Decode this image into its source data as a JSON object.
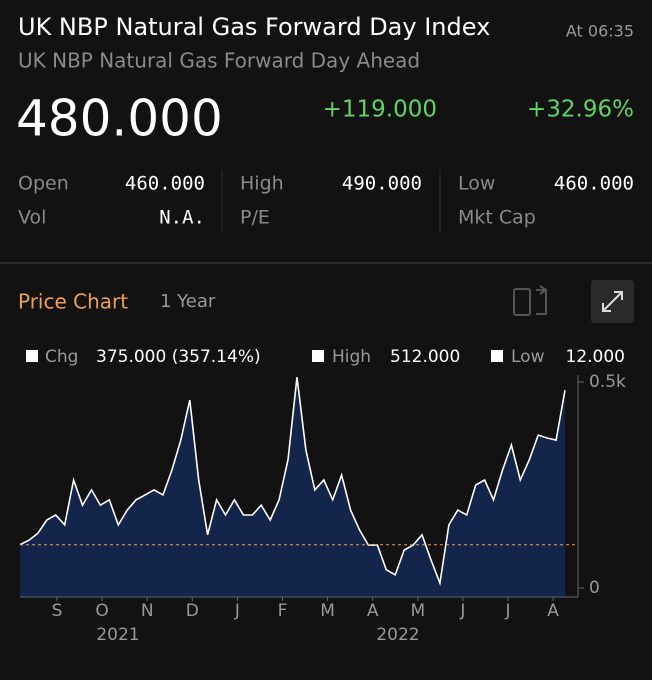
{
  "header": {
    "title": "UK NBP Natural Gas Forward Day Index",
    "time": "At 06:35",
    "subtitle": "UK NBP Natural Gas Forward Day Ahead",
    "price": "480.000",
    "change": "+119.000",
    "change_pct": "+32.96%"
  },
  "stats": [
    {
      "label": "Open",
      "value": "460.000"
    },
    {
      "label": "High",
      "value": "490.000"
    },
    {
      "label": "Low",
      "value": "460.000"
    },
    {
      "label": "Vol",
      "value": "N.A."
    },
    {
      "label": "P/E"
    },
    {
      "label": "Mkt Cap"
    }
  ],
  "chart_data": {
    "type": "area",
    "title": "Price Chart",
    "period": "1 Year",
    "legend": [
      {
        "label": "Chg",
        "value": "375.000 (357.14%)"
      },
      {
        "label": "High",
        "value": "512.000"
      },
      {
        "label": "Low",
        "value": "12.000"
      }
    ],
    "months": [
      "S",
      "O",
      "N",
      "D",
      "J",
      "F",
      "M",
      "A",
      "M",
      "J",
      "J",
      "A"
    ],
    "years": [
      "2021",
      "2022"
    ],
    "values": [
      105,
      116,
      133,
      165,
      177,
      153,
      262,
      201,
      238,
      201,
      214,
      153,
      189,
      214,
      226,
      238,
      226,
      286,
      359,
      456,
      262,
      129,
      214,
      177,
      214,
      177,
      177,
      201,
      165,
      214,
      311,
      512,
      335,
      238,
      262,
      214,
      274,
      189,
      141,
      104,
      104,
      44,
      32,
      92,
      104,
      129,
      68,
      12,
      153,
      189,
      177,
      250,
      262,
      214,
      286,
      347,
      262,
      311,
      371,
      364,
      359,
      480
    ],
    "ylim": [
      -22,
      517
    ],
    "yticks": [
      0,
      {
        "value": 500,
        "label": "0.5k"
      }
    ],
    "color": "#13254a",
    "line_color": "#ffffff"
  }
}
